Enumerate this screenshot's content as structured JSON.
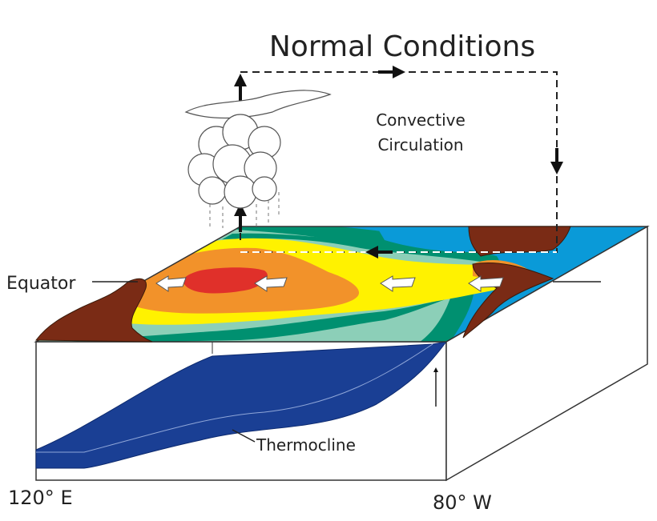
{
  "title": "Normal Conditions",
  "circulation_label": [
    "Convective",
    "Circulation"
  ],
  "equator_label": "Equator",
  "thermocline_label": "Thermocline",
  "west_label": "120° E",
  "east_label": "80° W"
}
